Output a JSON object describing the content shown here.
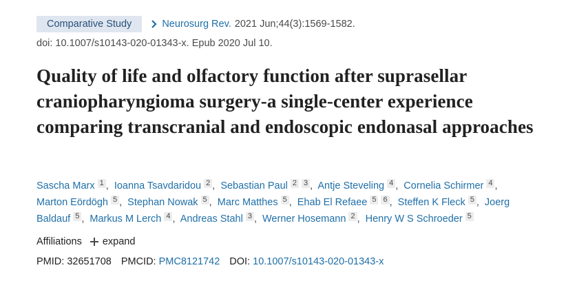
{
  "header": {
    "publication_type": "Comparative Study",
    "journal_name": "Neurosurg Rev.",
    "citation": "2021 Jun;44(3):1569-1582.",
    "doi_line": "doi: 10.1007/s10143-020-01343-x. Epub 2020 Jul 10."
  },
  "article": {
    "title": "Quality of life and olfactory function after suprasellar craniopharyngioma surgery-a single-center experience comparing transcranial and endoscopic endonasal approaches"
  },
  "authors": [
    {
      "name": "Sascha Marx",
      "affiliations": [
        "1"
      ]
    },
    {
      "name": "Ioanna Tsavdaridou",
      "affiliations": [
        "2"
      ]
    },
    {
      "name": "Sebastian Paul",
      "affiliations": [
        "2",
        "3"
      ]
    },
    {
      "name": "Antje Steveling",
      "affiliations": [
        "4"
      ]
    },
    {
      "name": "Cornelia Schirmer",
      "affiliations": [
        "4"
      ]
    },
    {
      "name": "Marton Eördögh",
      "affiliations": [
        "5"
      ]
    },
    {
      "name": "Stephan Nowak",
      "affiliations": [
        "5"
      ]
    },
    {
      "name": "Marc Matthes",
      "affiliations": [
        "5"
      ]
    },
    {
      "name": "Ehab El Refaee",
      "affiliations": [
        "5",
        "6"
      ]
    },
    {
      "name": "Steffen K Fleck",
      "affiliations": [
        "5"
      ]
    },
    {
      "name": "Joerg Baldauf",
      "affiliations": [
        "5"
      ]
    },
    {
      "name": "Markus M Lerch",
      "affiliations": [
        "4"
      ]
    },
    {
      "name": "Andreas Stahl",
      "affiliations": [
        "3"
      ]
    },
    {
      "name": "Werner Hosemann",
      "affiliations": [
        "2"
      ]
    },
    {
      "name": "Henry W S Schroeder",
      "affiliations": [
        "5"
      ]
    }
  ],
  "affiliations": {
    "label": "Affiliations",
    "expand_label": "expand",
    "expand_icon": "plus-icon"
  },
  "identifiers": {
    "pmid_label": "PMID:",
    "pmid": "32651708",
    "pmcid_label": "PMCID:",
    "pmcid": "PMC8121742",
    "doi_label": "DOI:",
    "doi": "10.1007/s10143-020-01343-x"
  },
  "colors": {
    "link": "#1f6fa8",
    "badge_bg": "#dfe6f0",
    "badge_text": "#28507a",
    "title_text": "#212121",
    "sup_bg": "#ececec"
  }
}
